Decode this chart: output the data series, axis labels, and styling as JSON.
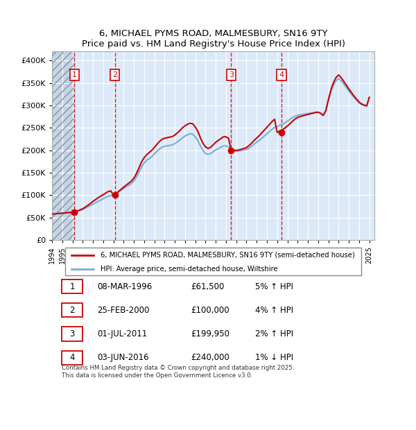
{
  "title": "6, MICHAEL PYMS ROAD, MALMESBURY, SN16 9TY",
  "subtitle": "Price paid vs. HM Land Registry's House Price Index (HPI)",
  "ylim": [
    0,
    420000
  ],
  "yticks": [
    0,
    50000,
    100000,
    150000,
    200000,
    250000,
    300000,
    350000,
    400000
  ],
  "ytick_labels": [
    "£0",
    "£50K",
    "£100K",
    "£150K",
    "£200K",
    "£250K",
    "£300K",
    "£350K",
    "£400K"
  ],
  "xlim_start": 1994.0,
  "xlim_end": 2025.5,
  "background_color": "#ffffff",
  "plot_bg_color": "#dce9f8",
  "grid_color": "#ffffff",
  "sale_dates": [
    1996.19,
    2000.15,
    2011.5,
    2016.42
  ],
  "sale_prices": [
    61500,
    100000,
    199950,
    240000
  ],
  "sale_labels": [
    "1",
    "2",
    "3",
    "4"
  ],
  "legend_line1": "6, MICHAEL PYMS ROAD, MALMESBURY, SN16 9TY (semi-detached house)",
  "legend_line2": "HPI: Average price, semi-detached house, Wiltshire",
  "table_rows": [
    {
      "num": "1",
      "date": "08-MAR-1996",
      "price": "£61,500",
      "pct": "5%",
      "dir": "↑",
      "ref": "HPI"
    },
    {
      "num": "2",
      "date": "25-FEB-2000",
      "price": "£100,000",
      "pct": "4%",
      "dir": "↑",
      "ref": "HPI"
    },
    {
      "num": "3",
      "date": "01-JUL-2011",
      "price": "£199,950",
      "pct": "2%",
      "dir": "↑",
      "ref": "HPI"
    },
    {
      "num": "4",
      "date": "03-JUN-2016",
      "price": "£240,000",
      "pct": "1%",
      "dir": "↓",
      "ref": "HPI"
    }
  ],
  "footnote": "Contains HM Land Registry data © Crown copyright and database right 2025.\nThis data is licensed under the Open Government Licence v3.0.",
  "hpi_years": [
    1994.0,
    1994.25,
    1994.5,
    1994.75,
    1995.0,
    1995.25,
    1995.5,
    1995.75,
    1996.0,
    1996.25,
    1996.5,
    1996.75,
    1997.0,
    1997.25,
    1997.5,
    1997.75,
    1998.0,
    1998.25,
    1998.5,
    1998.75,
    1999.0,
    1999.25,
    1999.5,
    1999.75,
    2000.0,
    2000.25,
    2000.5,
    2000.75,
    2001.0,
    2001.25,
    2001.5,
    2001.75,
    2002.0,
    2002.25,
    2002.5,
    2002.75,
    2003.0,
    2003.25,
    2003.5,
    2003.75,
    2004.0,
    2004.25,
    2004.5,
    2004.75,
    2005.0,
    2005.25,
    2005.5,
    2005.75,
    2006.0,
    2006.25,
    2006.5,
    2006.75,
    2007.0,
    2007.25,
    2007.5,
    2007.75,
    2008.0,
    2008.25,
    2008.5,
    2008.75,
    2009.0,
    2009.25,
    2009.5,
    2009.75,
    2010.0,
    2010.25,
    2010.5,
    2010.75,
    2011.0,
    2011.25,
    2011.5,
    2011.75,
    2012.0,
    2012.25,
    2012.5,
    2012.75,
    2013.0,
    2013.25,
    2013.5,
    2013.75,
    2014.0,
    2014.25,
    2014.5,
    2014.75,
    2015.0,
    2015.25,
    2015.5,
    2015.75,
    2016.0,
    2016.25,
    2016.5,
    2016.75,
    2017.0,
    2017.25,
    2017.5,
    2017.75,
    2018.0,
    2018.25,
    2018.5,
    2018.75,
    2019.0,
    2019.25,
    2019.5,
    2019.75,
    2020.0,
    2020.25,
    2020.5,
    2020.75,
    2021.0,
    2021.25,
    2021.5,
    2021.75,
    2022.0,
    2022.25,
    2022.5,
    2022.75,
    2023.0,
    2023.25,
    2023.5,
    2023.75,
    2024.0,
    2024.25,
    2024.5,
    2024.75,
    2025.0
  ],
  "hpi_values": [
    58000,
    58500,
    59000,
    59500,
    60000,
    60500,
    61000,
    61500,
    62000,
    63000,
    64500,
    66000,
    68000,
    71000,
    74000,
    77000,
    80000,
    83000,
    86000,
    89000,
    92000,
    95000,
    98000,
    99000,
    100000,
    103000,
    107000,
    111000,
    115000,
    119000,
    122000,
    126000,
    132000,
    141000,
    152000,
    163000,
    172000,
    178000,
    182000,
    186000,
    192000,
    198000,
    203000,
    207000,
    209000,
    210000,
    211000,
    212000,
    215000,
    219000,
    223000,
    228000,
    232000,
    235000,
    237000,
    236000,
    230000,
    222000,
    210000,
    200000,
    193000,
    191000,
    193000,
    197000,
    201000,
    204000,
    207000,
    210000,
    210000,
    207000,
    203000,
    200000,
    198000,
    199000,
    200000,
    201000,
    202000,
    205000,
    209000,
    214000,
    218000,
    222000,
    227000,
    232000,
    237000,
    242000,
    247000,
    251000,
    253000,
    256000,
    258000,
    261000,
    265000,
    269000,
    273000,
    276000,
    278000,
    279000,
    280000,
    281000,
    282000,
    283000,
    284000,
    285000,
    285000,
    283000,
    279000,
    288000,
    310000,
    330000,
    345000,
    355000,
    360000,
    355000,
    348000,
    340000,
    332000,
    325000,
    318000,
    312000,
    306000,
    302000,
    300000,
    299000,
    318000
  ],
  "prop_years": [
    1994.0,
    1994.25,
    1994.5,
    1994.75,
    1995.0,
    1995.25,
    1995.5,
    1995.75,
    1996.0,
    1996.25,
    1996.5,
    1996.75,
    1997.0,
    1997.25,
    1997.5,
    1997.75,
    1998.0,
    1998.25,
    1998.5,
    1998.75,
    1999.0,
    1999.25,
    1999.5,
    1999.75,
    2000.0,
    2000.25,
    2000.5,
    2000.75,
    2001.0,
    2001.25,
    2001.5,
    2001.75,
    2002.0,
    2002.25,
    2002.5,
    2002.75,
    2003.0,
    2003.25,
    2003.5,
    2003.75,
    2004.0,
    2004.25,
    2004.5,
    2004.75,
    2005.0,
    2005.25,
    2005.5,
    2005.75,
    2006.0,
    2006.25,
    2006.5,
    2006.75,
    2007.0,
    2007.25,
    2007.5,
    2007.75,
    2008.0,
    2008.25,
    2008.5,
    2008.75,
    2009.0,
    2009.25,
    2009.5,
    2009.75,
    2010.0,
    2010.25,
    2010.5,
    2010.75,
    2011.0,
    2011.25,
    2011.5,
    2011.75,
    2012.0,
    2012.25,
    2012.5,
    2012.75,
    2013.0,
    2013.25,
    2013.5,
    2013.75,
    2014.0,
    2014.25,
    2014.5,
    2014.75,
    2015.0,
    2015.25,
    2015.5,
    2015.75,
    2016.0,
    2016.25,
    2016.5,
    2016.75,
    2017.0,
    2017.25,
    2017.5,
    2017.75,
    2018.0,
    2018.25,
    2018.5,
    2018.75,
    2019.0,
    2019.25,
    2019.5,
    2019.75,
    2020.0,
    2020.25,
    2020.5,
    2020.75,
    2021.0,
    2021.25,
    2021.5,
    2021.75,
    2022.0,
    2022.25,
    2022.5,
    2022.75,
    2023.0,
    2023.25,
    2023.5,
    2023.75,
    2024.0,
    2024.25,
    2024.5,
    2024.75,
    2025.0
  ],
  "prop_values": [
    58000,
    58500,
    59000,
    59500,
    60000,
    60500,
    61000,
    61500,
    61500,
    63200,
    65200,
    67400,
    70000,
    73500,
    77400,
    81600,
    86100,
    90300,
    94200,
    97800,
    101200,
    104700,
    108300,
    109700,
    100000,
    103800,
    108400,
    113200,
    118000,
    122600,
    126800,
    131400,
    138000,
    148200,
    160800,
    174000,
    183600,
    190200,
    195200,
    200000,
    206400,
    213400,
    219600,
    224600,
    226800,
    228200,
    229400,
    230600,
    234000,
    238800,
    244200,
    250200,
    254800,
    258200,
    260400,
    259200,
    252200,
    242200,
    228000,
    215600,
    207600,
    204200,
    206800,
    212400,
    218000,
    222200,
    226200,
    230200,
    230200,
    226800,
    199950,
    199950,
    199950,
    200800,
    202400,
    204200,
    206200,
    210600,
    215800,
    222200,
    227400,
    232800,
    239200,
    245200,
    251400,
    257800,
    264200,
    269400,
    240000,
    243200,
    246000,
    249600,
    254200,
    259400,
    265000,
    269800,
    273400,
    275200,
    276800,
    278400,
    280000,
    281400,
    282800,
    284200,
    285000,
    282400,
    277600,
    288400,
    312600,
    334400,
    351000,
    362200,
    368000,
    362200,
    354000,
    345400,
    337000,
    329000,
    321200,
    314400,
    307600,
    303400,
    301000,
    299000,
    318000
  ]
}
